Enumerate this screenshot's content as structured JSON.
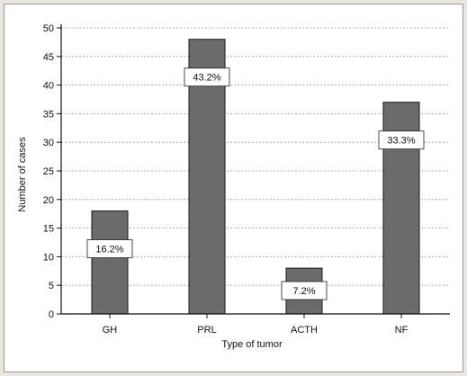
{
  "chart_data": {
    "type": "bar",
    "categories": [
      "GH",
      "PRL",
      "ACTH",
      "NF"
    ],
    "values": [
      18,
      48,
      8,
      37
    ],
    "data_labels": [
      "16.2%",
      "43.2%",
      "7.2%",
      "33.3%"
    ],
    "xlabel": "Type of tumor",
    "ylabel": "Number of cases",
    "ylim": [
      0,
      50
    ],
    "yticks": [
      0,
      5,
      10,
      15,
      20,
      25,
      30,
      35,
      40,
      45,
      50
    ],
    "grid": "horizontal dashed",
    "legend": "none",
    "bar_color": "#6b6b6b",
    "bar_edge_color": "#1a1a1a",
    "label_box_color": "#ffffff"
  }
}
